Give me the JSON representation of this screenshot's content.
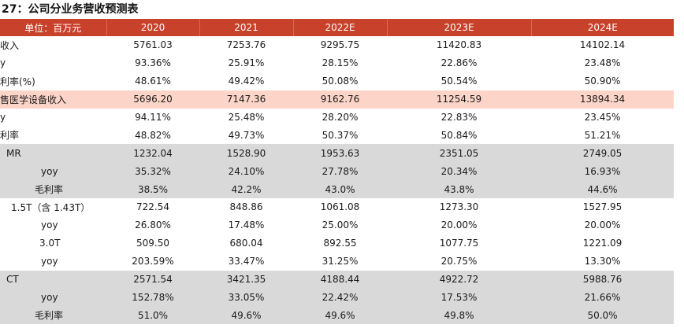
{
  "title": "27：公司分业务营收预测表",
  "header": [
    "单位：百万元",
    "2020",
    "2021",
    "2022E",
    "2023E",
    "2024E"
  ],
  "rows": [
    {
      "label": "收入",
      "indent": 0,
      "bg": "white",
      "values": [
        "5761.03",
        "7253.76",
        "9295.75",
        "11420.83",
        "14102.14"
      ]
    },
    {
      "label": "y",
      "indent": 0,
      "bg": "white",
      "values": [
        "93.36%",
        "25.91%",
        "28.15%",
        "22.86%",
        "23.48%"
      ]
    },
    {
      "label": "利率(%)",
      "indent": 0,
      "bg": "white",
      "values": [
        "48.61%",
        "49.42%",
        "50.08%",
        "50.54%",
        "50.90%"
      ]
    },
    {
      "label": "售医学设备收入",
      "indent": 0,
      "bg": "pink",
      "values": [
        "5696.20",
        "7147.36",
        "9162.76",
        "11254.59",
        "13894.34"
      ]
    },
    {
      "label": "y",
      "indent": 0,
      "bg": "white",
      "values": [
        "94.11%",
        "25.48%",
        "28.20%",
        "22.83%",
        "23.45%"
      ]
    },
    {
      "label": "利率",
      "indent": 0,
      "bg": "white",
      "values": [
        "48.82%",
        "49.73%",
        "50.37%",
        "50.84%",
        "51.21%"
      ]
    },
    {
      "label": "MR",
      "indent": 8,
      "bg": "gray",
      "values": [
        "1232.04",
        "1528.90",
        "1953.63",
        "2351.05",
        "2749.05"
      ]
    },
    {
      "label": "yoy",
      "indent": 52,
      "bg": "gray",
      "values": [
        "35.32%",
        "24.10%",
        "27.78%",
        "20.34%",
        "16.93%"
      ]
    },
    {
      "label": "毛利率",
      "indent": 44,
      "bg": "gray",
      "values": [
        "38.5%",
        "42.2%",
        "43.0%",
        "43.8%",
        "44.6%"
      ]
    },
    {
      "label": "1.5T（含 1.43T）",
      "indent": 14,
      "bg": "white",
      "values": [
        "722.54",
        "848.86",
        "1061.08",
        "1273.30",
        "1527.95"
      ]
    },
    {
      "label": "yoy",
      "indent": 52,
      "bg": "white",
      "values": [
        "26.80%",
        "17.48%",
        "25.00%",
        "20.00%",
        "20.00%"
      ]
    },
    {
      "label": "3.0T",
      "indent": 50,
      "bg": "white",
      "values": [
        "509.50",
        "680.04",
        "892.55",
        "1077.75",
        "1221.09"
      ]
    },
    {
      "label": "yoy",
      "indent": 52,
      "bg": "white",
      "values": [
        "203.59%",
        "33.47%",
        "31.25%",
        "20.75%",
        "13.30%"
      ]
    },
    {
      "label": "CT",
      "indent": 8,
      "bg": "gray",
      "values": [
        "2571.54",
        "3421.35",
        "4188.44",
        "4922.72",
        "5988.76"
      ]
    },
    {
      "label": "yoy",
      "indent": 52,
      "bg": "gray",
      "values": [
        "152.78%",
        "33.05%",
        "22.42%",
        "17.53%",
        "21.66%"
      ]
    },
    {
      "label": "毛利率",
      "indent": 44,
      "bg": "gray",
      "values": [
        "51.0%",
        "49.6%",
        "49.6%",
        "49.8%",
        "50.0%"
      ]
    }
  ]
}
